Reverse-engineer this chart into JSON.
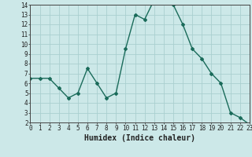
{
  "x": [
    0,
    1,
    2,
    3,
    4,
    5,
    6,
    7,
    8,
    9,
    10,
    11,
    12,
    13,
    14,
    15,
    16,
    17,
    18,
    19,
    20,
    21,
    22,
    23
  ],
  "y": [
    6.5,
    6.5,
    6.5,
    5.5,
    4.5,
    5.0,
    7.5,
    6.0,
    4.5,
    5.0,
    9.5,
    13.0,
    12.5,
    14.5,
    14.5,
    14.0,
    12.0,
    9.5,
    8.5,
    7.0,
    6.0,
    3.0,
    2.5,
    1.8
  ],
  "line_color": "#1a6b5a",
  "marker": "D",
  "marker_size": 2.0,
  "bg_color": "#cce8e8",
  "grid_color": "#aacfcf",
  "xlabel": "Humidex (Indice chaleur)",
  "xlim": [
    0,
    23
  ],
  "ylim": [
    2,
    14
  ],
  "yticks": [
    2,
    3,
    4,
    5,
    6,
    7,
    8,
    9,
    10,
    11,
    12,
    13,
    14
  ],
  "xticks": [
    0,
    1,
    2,
    3,
    4,
    5,
    6,
    7,
    8,
    9,
    10,
    11,
    12,
    13,
    14,
    15,
    16,
    17,
    18,
    19,
    20,
    21,
    22,
    23
  ],
  "tick_fontsize": 5.5,
  "xlabel_fontsize": 7.0,
  "linewidth": 1.0
}
